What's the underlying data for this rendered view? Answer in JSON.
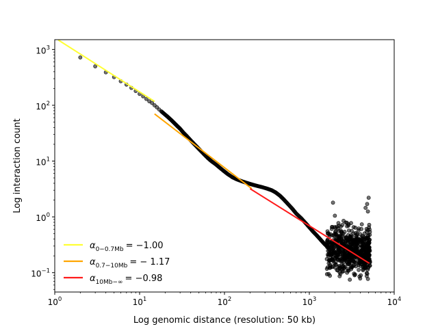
{
  "chart_data": {
    "type": "scatter",
    "title": "",
    "xlabel": "Log genomic distance (resolution: 50 kb)",
    "ylabel": "Log interaction count",
    "xscale": "log",
    "yscale": "log",
    "xlim": [
      1,
      10000
    ],
    "ylim": [
      0.045,
      1500
    ],
    "grid": false,
    "legend_position": "lower-left",
    "x_ticks": [
      {
        "value": 1,
        "base": "10",
        "exp": "0"
      },
      {
        "value": 10,
        "base": "10",
        "exp": "1"
      },
      {
        "value": 100,
        "base": "10",
        "exp": "2"
      },
      {
        "value": 1000,
        "base": "10",
        "exp": "3"
      },
      {
        "value": 10000,
        "base": "10",
        "exp": "4"
      }
    ],
    "y_ticks": [
      {
        "value": 0.1,
        "base": "10",
        "exp": "−1"
      },
      {
        "value": 1,
        "base": "10",
        "exp": "0"
      },
      {
        "value": 10,
        "base": "10",
        "exp": "1"
      },
      {
        "value": 100,
        "base": "10",
        "exp": "2"
      },
      {
        "value": 1000,
        "base": "10",
        "exp": "3"
      }
    ],
    "scatter": {
      "color": "#000000",
      "profile_x": [
        2,
        3,
        4,
        5,
        6,
        7,
        8,
        9,
        10,
        11,
        12,
        13,
        14,
        15,
        16,
        17,
        18,
        20,
        22,
        24,
        26,
        28,
        30,
        33,
        36,
        40,
        45,
        50,
        56,
        63,
        70,
        80,
        90,
        100,
        110,
        125,
        140,
        160,
        180,
        200,
        225,
        250,
        280,
        320,
        360,
        400,
        450,
        500,
        560,
        630,
        700,
        800,
        900,
        1000,
        1100,
        1200,
        1300,
        1400,
        1500,
        1600,
        1700
      ],
      "profile_y": [
        720,
        500,
        390,
        320,
        270,
        235,
        205,
        180,
        160,
        145,
        130,
        118,
        110,
        100,
        92,
        84,
        78,
        68,
        60,
        53,
        47,
        42,
        38,
        32,
        28,
        23.5,
        19.5,
        16.5,
        13.8,
        11.5,
        10,
        8.6,
        7.4,
        6.5,
        5.8,
        5.1,
        4.7,
        4.35,
        4.1,
        3.9,
        3.7,
        3.55,
        3.4,
        3.2,
        3.0,
        2.75,
        2.4,
        2.05,
        1.7,
        1.4,
        1.15,
        0.95,
        0.78,
        0.65,
        0.55,
        0.48,
        0.42,
        0.37,
        0.33,
        0.3,
        0.28
      ],
      "cloud": {
        "x_range": [
          1600,
          5200
        ],
        "y_center": 0.25,
        "spread_decades": 0.25,
        "count": 700
      },
      "outliers": [
        [
          1900,
          1.8
        ],
        [
          2000,
          1.05
        ],
        [
          3000,
          0.075
        ],
        [
          5000,
          2.2
        ],
        [
          4800,
          1.7
        ],
        [
          4900,
          1.25
        ],
        [
          4600,
          1.45
        ]
      ]
    },
    "series": [
      {
        "type": "line",
        "color": "#ffff33",
        "x": [
          1.1,
          15
        ],
        "y": [
          1480,
          117
        ]
      },
      {
        "type": "line",
        "color": "#ffa500",
        "x": [
          15,
          210
        ],
        "y": [
          70,
          3.2
        ]
      },
      {
        "type": "line",
        "color": "#ff1a1a",
        "x": [
          200,
          5100
        ],
        "y": [
          3.2,
          0.147
        ]
      }
    ],
    "legend": [
      {
        "sub": "0−0.7Mb",
        "value": "= −1.00",
        "color": "#ffff33"
      },
      {
        "sub": "0.7−10Mb",
        "value": "= − 1.17",
        "color": "#ffa500"
      },
      {
        "sub": "10Mb−∞",
        "value": "= −0.98",
        "color": "#ff1a1a"
      }
    ],
    "legend_symbol": "α"
  }
}
